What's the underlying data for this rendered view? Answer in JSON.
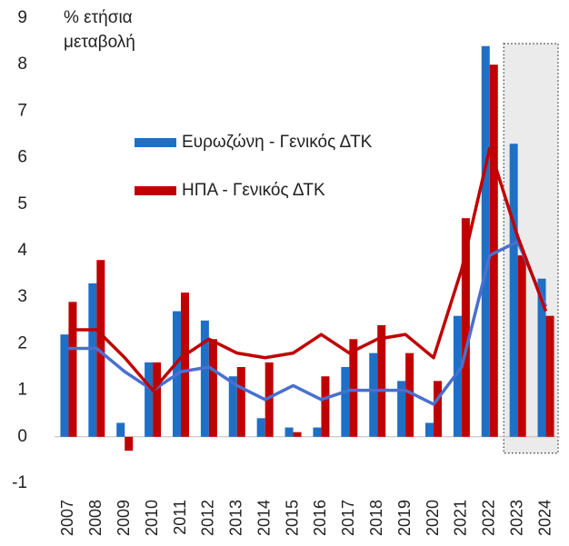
{
  "chart_data": {
    "type": "bar",
    "y_label": [
      "% ετήσια",
      "μεταβολή"
    ],
    "categories": [
      "2007",
      "2008",
      "2009",
      "2010",
      "2011",
      "2012",
      "2013",
      "2014",
      "2015",
      "2016",
      "2017",
      "2018",
      "2019",
      "2020",
      "2021",
      "2022",
      "2023",
      "2024"
    ],
    "series": [
      {
        "name": "Ευρωζώνη - Γενικός ΔΤΚ",
        "color": "#1f6fc5",
        "kind": "bar",
        "values": [
          2.2,
          3.3,
          0.3,
          1.6,
          2.7,
          2.5,
          1.3,
          0.4,
          0.2,
          0.2,
          1.5,
          1.8,
          1.2,
          0.3,
          2.6,
          8.4,
          6.3,
          3.4
        ]
      },
      {
        "name": "ΗΠΑ - Γενικός ΔΤΚ",
        "color": "#c00000",
        "kind": "bar",
        "values": [
          2.9,
          3.8,
          -0.3,
          1.6,
          3.1,
          2.1,
          1.5,
          1.6,
          0.1,
          1.3,
          2.1,
          2.4,
          1.8,
          1.2,
          4.7,
          8.0,
          3.9,
          2.6
        ]
      },
      {
        "color": "#4a6fd0",
        "kind": "line",
        "values": [
          1.9,
          1.9,
          1.4,
          1.0,
          1.4,
          1.5,
          1.1,
          0.8,
          1.1,
          0.8,
          1.0,
          1.0,
          1.0,
          0.7,
          1.5,
          3.9,
          4.2,
          2.8
        ]
      },
      {
        "color": "#c00000",
        "kind": "line",
        "values": [
          2.3,
          2.3,
          1.7,
          1.0,
          1.7,
          2.1,
          1.8,
          1.7,
          1.8,
          2.2,
          1.8,
          2.1,
          2.2,
          1.7,
          3.6,
          6.2,
          4.3,
          2.7
        ]
      }
    ],
    "ylim": [
      -1,
      9
    ],
    "yticks": [
      -1,
      0,
      1,
      2,
      3,
      4,
      5,
      6,
      7,
      8,
      9
    ],
    "grid": false
  }
}
